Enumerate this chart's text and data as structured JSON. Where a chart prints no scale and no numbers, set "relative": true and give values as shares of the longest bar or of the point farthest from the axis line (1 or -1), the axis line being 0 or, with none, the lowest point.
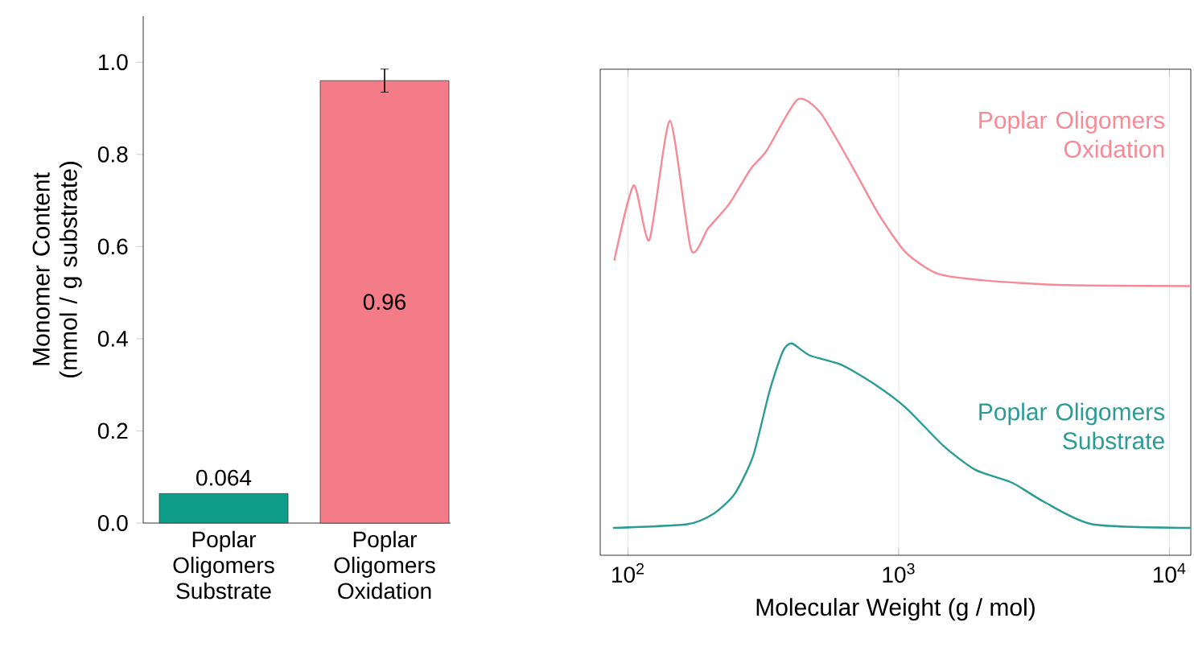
{
  "chart_data": [
    {
      "type": "bar",
      "ylabel": "Monomer Content (mmol / g substrate)",
      "categories": [
        "Poplar Oligomers Substrate",
        "Poplar Oligomers Oxidation"
      ],
      "values": [
        0.064,
        0.96
      ],
      "colors": [
        "#0d9d89",
        "#f47c88"
      ],
      "errors": [
        null,
        0.025
      ],
      "value_labels": [
        "0.064",
        "0.96"
      ],
      "ylim": [
        0,
        1.1
      ],
      "yticks": [
        {
          "value": 0,
          "label": "0.0"
        },
        {
          "value": 0.2,
          "label": "0.2"
        },
        {
          "value": 0.4,
          "label": "0.4"
        },
        {
          "value": 0.6,
          "label": "0.6"
        },
        {
          "value": 0.8,
          "label": "0.8"
        },
        {
          "value": 1.0,
          "label": "1.0"
        }
      ]
    },
    {
      "type": "line",
      "xlabel": "Molecular Weight (g / mol)",
      "log": "x",
      "relative": true,
      "grid": "x",
      "xlim": [
        79,
        12000
      ],
      "xticks": [
        {
          "value": 100,
          "label": "10$^{2}$"
        },
        {
          "value": 1000,
          "label": "10$^{3}$"
        },
        {
          "value": 10000,
          "label": "10$^{4}$"
        }
      ],
      "series": [
        {
          "name": "Poplar Oligomers Oxidation",
          "color": "#f68b97",
          "x": [
            89,
            105,
            120,
            143,
            171,
            198,
            237,
            284,
            326,
            422,
            513,
            673,
            845,
            1062,
            1394,
            2096,
            4140,
            12000
          ],
          "values": [
            0.647,
            0.812,
            0.692,
            0.954,
            0.671,
            0.718,
            0.772,
            0.848,
            0.889,
            1.0,
            0.972,
            0.854,
            0.748,
            0.665,
            0.618,
            0.603,
            0.593,
            0.591
          ]
        },
        {
          "name": "Poplar Oligomers Substrate",
          "color": "#2b9c95",
          "x": [
            88,
            165,
            207,
            248,
            290,
            333,
            373,
            403,
            468,
            615,
            807,
            1062,
            1459,
            1915,
            2630,
            3450,
            5200,
            12000
          ],
          "values": [
            0.06,
            0.068,
            0.091,
            0.135,
            0.218,
            0.359,
            0.447,
            0.465,
            0.439,
            0.418,
            0.377,
            0.324,
            0.241,
            0.188,
            0.159,
            0.117,
            0.068,
            0.06
          ]
        }
      ]
    }
  ]
}
